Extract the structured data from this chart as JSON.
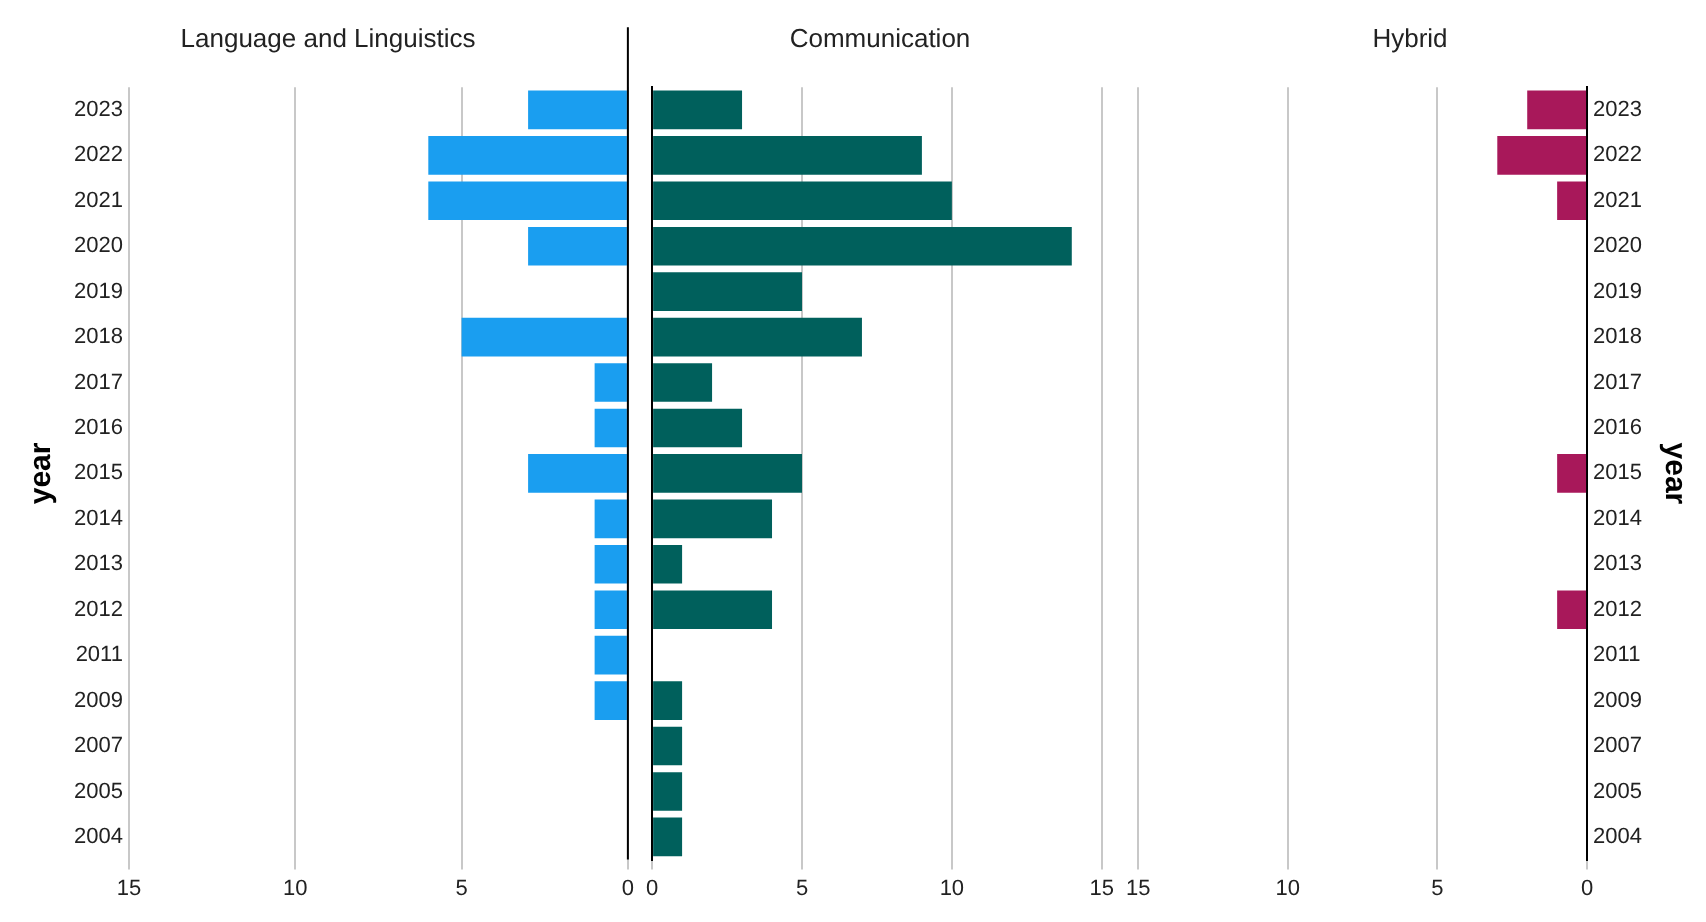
{
  "chart_data": [
    {
      "type": "bar",
      "orientation": "horizontal",
      "title": "Language and Linguistics",
      "ylabel": "year",
      "categories": [
        "2023",
        "2022",
        "2021",
        "2020",
        "2019",
        "2018",
        "2017",
        "2016",
        "2015",
        "2014",
        "2013",
        "2012",
        "2011",
        "2009",
        "2007",
        "2005",
        "2004"
      ],
      "series": [
        {
          "color": "#1a9ef0",
          "values": [
            3,
            6,
            6,
            3,
            null,
            5,
            1,
            1,
            3,
            1,
            1,
            1,
            1,
            1,
            null,
            null,
            null
          ]
        }
      ],
      "xlim": [
        15,
        0
      ],
      "xticks": [
        15,
        10,
        5,
        0
      ],
      "grid": "x"
    },
    {
      "type": "bar",
      "orientation": "horizontal",
      "title": "Communication",
      "categories": [
        "2023",
        "2022",
        "2021",
        "2020",
        "2019",
        "2018",
        "2017",
        "2016",
        "2015",
        "2014",
        "2013",
        "2012",
        "2011",
        "2009",
        "2007",
        "2005",
        "2004"
      ],
      "series": [
        {
          "color": "#00605c",
          "values": [
            3,
            9,
            10,
            14,
            5,
            7,
            2,
            3,
            5,
            4,
            1,
            4,
            null,
            1,
            1,
            1,
            1
          ]
        }
      ],
      "xlim": [
        0,
        15
      ],
      "xticks": [
        0,
        5,
        10,
        15
      ],
      "grid": "x",
      "tick_labels": "x"
    },
    {
      "type": "bar",
      "orientation": "horizontal",
      "title": "Hybrid",
      "ylabel": "year",
      "categories": [
        "2023",
        "2022",
        "2021",
        "2020",
        "2019",
        "2018",
        "2017",
        "2016",
        "2015",
        "2014",
        "2013",
        "2012",
        "2011",
        "2009",
        "2007",
        "2005",
        "2004"
      ],
      "series": [
        {
          "color": "#a8185a",
          "values": [
            2,
            3,
            1,
            null,
            null,
            null,
            null,
            null,
            1,
            null,
            null,
            1,
            null,
            null,
            null,
            null,
            null
          ]
        }
      ],
      "xlim": [
        15,
        0
      ],
      "xticks": [
        15,
        10,
        5,
        0
      ],
      "grid": "x"
    }
  ]
}
